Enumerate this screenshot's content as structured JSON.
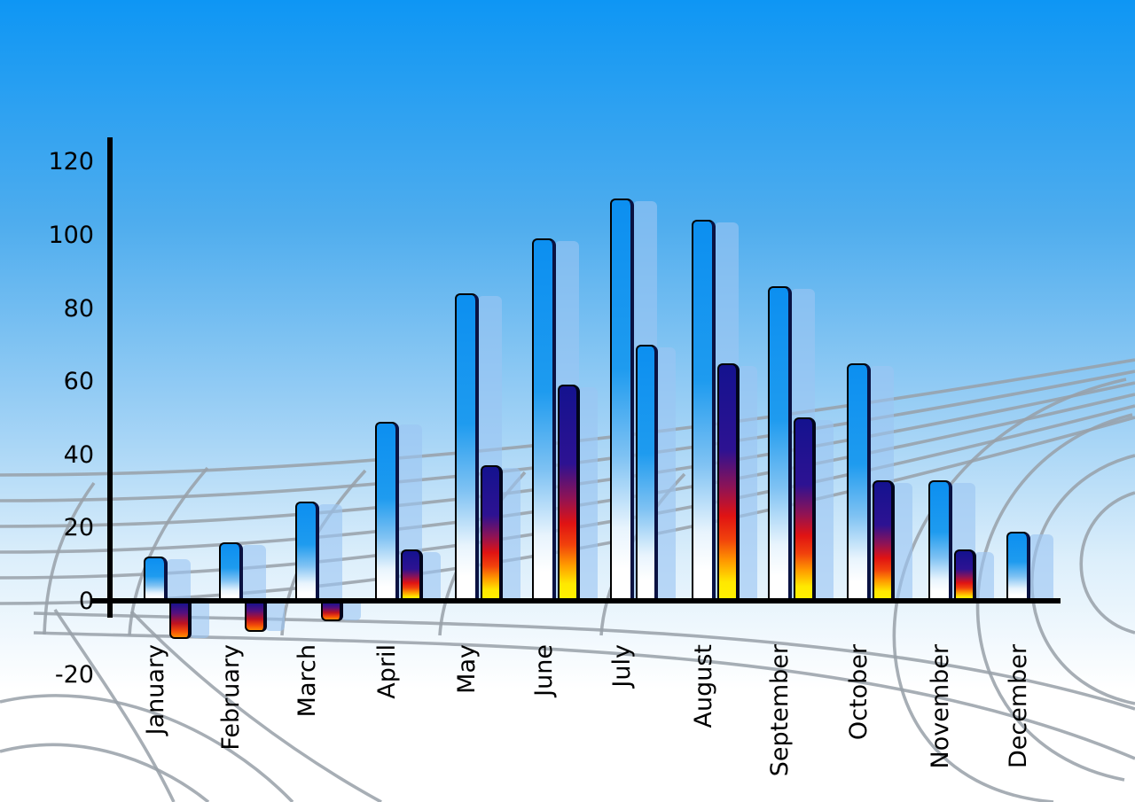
{
  "chart_data": {
    "type": "bar",
    "title": "",
    "xlabel": "",
    "ylabel": "",
    "categories": [
      "January",
      "February",
      "March",
      "April",
      "May",
      "June",
      "July",
      "August",
      "September",
      "October",
      "November",
      "December"
    ],
    "series": [
      {
        "name": "primary-blue-bars",
        "values": [
          12,
          16,
          27,
          49,
          84,
          99,
          110,
          104,
          86,
          65,
          33,
          19
        ]
      },
      {
        "name": "secondary-gradient-bars",
        "values": [
          -10,
          -8,
          -5,
          14,
          37,
          59,
          70,
          65,
          50,
          33,
          14,
          null
        ],
        "styles": [
          "colored",
          "colored",
          "colored",
          "colored",
          "colored",
          "colored",
          "blue",
          "colored",
          "colored",
          "colored",
          "colored",
          null
        ]
      }
    ],
    "y_axis": {
      "ticks": [
        120,
        100,
        80,
        60,
        40,
        20,
        0,
        -20
      ],
      "min": -20,
      "max": 120
    },
    "x_axis": {
      "label_rotation": -90
    },
    "legend": "none",
    "grid": "perspective-track-lanes",
    "colors": {
      "sky_top": "#0e96f4",
      "sky_bottom": "#ffffff",
      "bar_blue_top": "#0c8ff0",
      "bar_blue_bottom": "#ffffff",
      "bar_colored_top": "#14128f",
      "bar_colored_mid": "#e01313",
      "bar_colored_bottom": "#ffe800",
      "bar_negative_bottom": "#ff8c00",
      "shadow_fill": "rgba(155,197,242,0.62)",
      "grid_line": "#98a0a8",
      "axis": "#000000",
      "label": "#000000"
    }
  }
}
